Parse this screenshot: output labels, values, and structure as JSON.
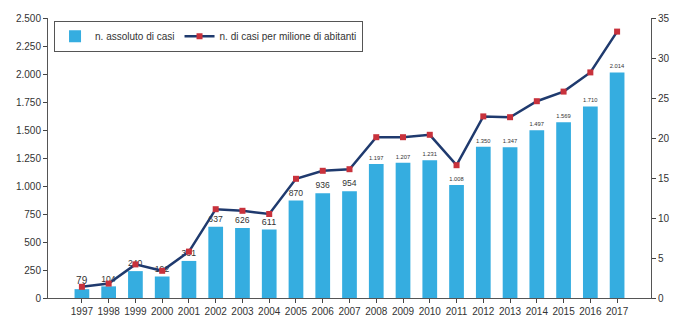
{
  "chart_data": {
    "type": "bar",
    "categories": [
      "1997",
      "1998",
      "1999",
      "2000",
      "2001",
      "2002",
      "2003",
      "2004",
      "2005",
      "2006",
      "2007",
      "2008",
      "2009",
      "2010",
      "2011",
      "2012",
      "2013",
      "2014",
      "2015",
      "2016",
      "2017"
    ],
    "series": [
      {
        "name": "n. assoluto di casi",
        "type": "bar",
        "color": "#35ade0",
        "values": [
          79,
          104,
          240,
          192,
          331,
          637,
          626,
          611,
          870,
          936,
          954,
          1197,
          1207,
          1231,
          1008,
          1350,
          1347,
          1497,
          1569,
          1710,
          2014
        ],
        "value_labels": [
          "79",
          "104",
          "240",
          "192",
          "331",
          "637",
          "626",
          "611",
          "870",
          "936",
          "954",
          "1.197",
          "1.207",
          "1.231",
          "1.008",
          "1.350",
          "1.347",
          "1.497",
          "1.569",
          "1.710",
          "2.014"
        ]
      },
      {
        "name": "n. di casi per milione di abitanti",
        "type": "line",
        "axis": "y2",
        "color": "#1f3a6e",
        "marker": "square",
        "values": [
          1.4,
          1.8,
          4.2,
          3.4,
          5.8,
          11.1,
          10.9,
          10.5,
          14.9,
          15.9,
          16.1,
          20.1,
          20.1,
          20.4,
          16.6,
          22.7,
          22.6,
          24.6,
          25.8,
          28.2,
          33.3
        ]
      }
    ],
    "ylim": [
      0,
      2500
    ],
    "yticks": [
      0,
      250,
      500,
      750,
      {
        "value": 1000,
        "label": "1.000"
      },
      {
        "value": 1250,
        "label": "1.250"
      },
      {
        "value": 1500,
        "label": "1.500"
      },
      {
        "value": 1750,
        "label": "1.750"
      },
      {
        "value": 2000,
        "label": "2.000"
      },
      {
        "value": 2250,
        "label": "2.250"
      },
      {
        "value": 2500,
        "label": "2.500"
      }
    ],
    "y2lim": [
      0,
      35
    ],
    "y2ticks": [
      0,
      5,
      10,
      15,
      20,
      25,
      30,
      35
    ],
    "grid": false,
    "legend": "upper left",
    "data_labels": true
  }
}
